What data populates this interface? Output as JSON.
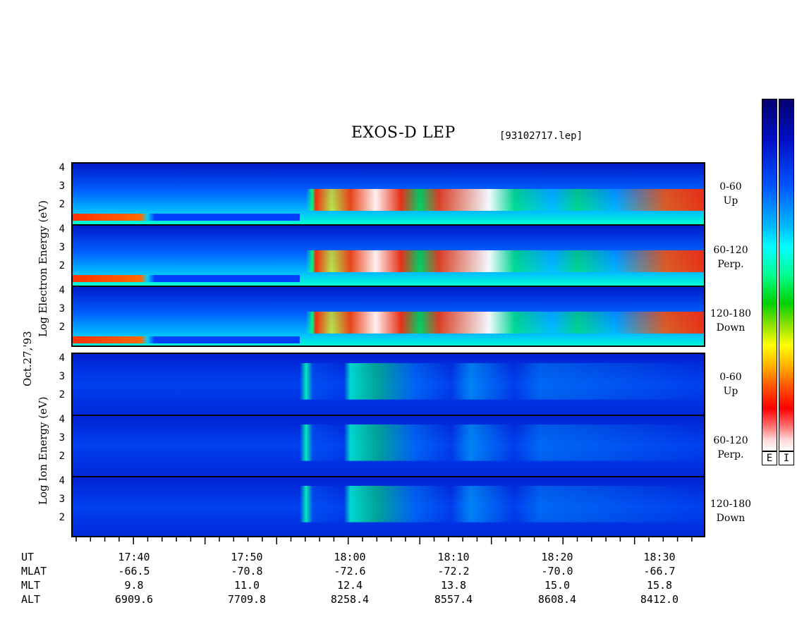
{
  "header": {
    "title": "EXOS-D LEP",
    "file_id": "[93102717.lep]"
  },
  "axis_labels": {
    "electron": "Log Electron Energy (eV)",
    "ion": "Log Ion Energy (eV)",
    "date": "Oct.27,'93"
  },
  "y_ticks": [
    "4",
    "3",
    "2"
  ],
  "colorbar_labels": [
    "E",
    "I"
  ],
  "colors": {
    "background": "#ffffff",
    "frame": "#000000"
  },
  "chart_data": {
    "type": "heatmap",
    "title": "EXOS-D LEP",
    "x_axis": {
      "label": "UT",
      "ticks": [
        "17:40",
        "17:50",
        "18:00",
        "18:10",
        "18:20",
        "18:30"
      ]
    },
    "y_axis": {
      "range": [
        1,
        4
      ],
      "ticks": [
        4,
        3,
        2
      ],
      "unit": "Log Energy (eV)"
    },
    "species": [
      {
        "name": "Electron",
        "channels": [
          {
            "line1": "0-60",
            "line2": "Up"
          },
          {
            "line1": "60-120",
            "line2": "Perp."
          },
          {
            "line1": "120-180",
            "line2": "Down"
          }
        ]
      },
      {
        "name": "Ion",
        "channels": [
          {
            "line1": "0-60",
            "line2": "Up"
          },
          {
            "line1": "60-120",
            "line2": "Perp."
          },
          {
            "line1": "120-180",
            "line2": "Down"
          }
        ]
      }
    ],
    "ephemeris_rows": [
      {
        "label": "UT",
        "values": [
          "17:40",
          "17:50",
          "18:00",
          "18:10",
          "18:20",
          "18:30"
        ]
      },
      {
        "label": "MLAT",
        "values": [
          "-66.5",
          "-70.8",
          "-72.6",
          "-72.2",
          "-70.0",
          "-66.7"
        ]
      },
      {
        "label": "MLT",
        "values": [
          "9.8",
          "11.0",
          "12.4",
          "13.8",
          "15.0",
          "15.8"
        ]
      },
      {
        "label": "ALT",
        "values": [
          "6909.6",
          "7709.8",
          "8258.4",
          "8557.4",
          "8608.4",
          "8412.0"
        ]
      }
    ]
  }
}
